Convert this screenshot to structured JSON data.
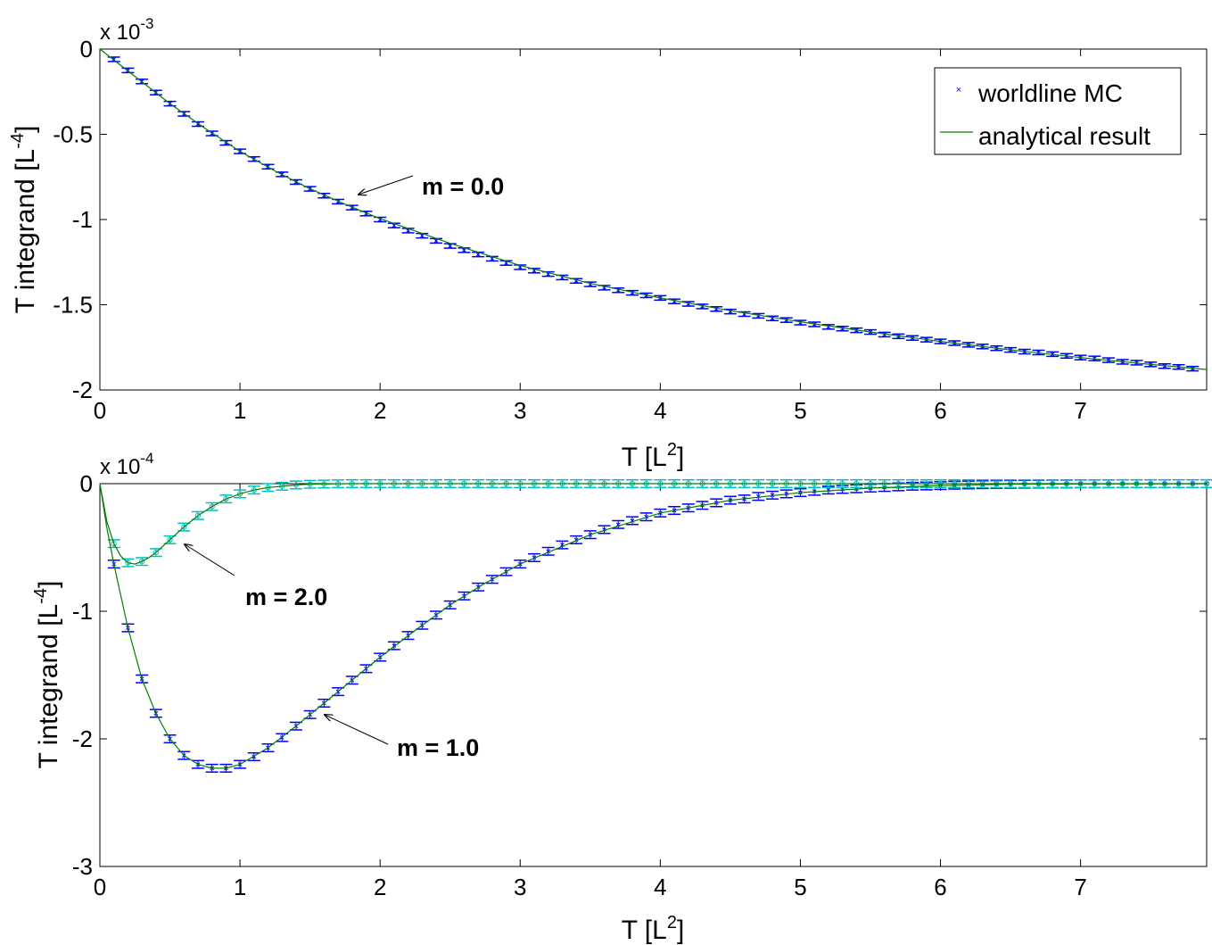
{
  "colors": {
    "mc_blue": "#0000ff",
    "mc_cyan": "#00bfbf",
    "analytic_green": "#008000",
    "axes": "#000000",
    "background": "#ffffff"
  },
  "chart_data": [
    {
      "type": "line",
      "xlabel": "T [L",
      "xlabel_sup": "2",
      "xlabel_close": "]",
      "ylabel": "T integrand [L",
      "ylabel_sup": "-4",
      "ylabel_close": "]",
      "exponent_base": "x 10",
      "exponent_power": "-3",
      "xlim": [
        0,
        7.9
      ],
      "ylim": [
        -2,
        0
      ],
      "xticks": [
        0,
        1,
        2,
        3,
        4,
        5,
        6,
        7
      ],
      "xtick_labels": [
        "0",
        "1",
        "2",
        "3",
        "4",
        "5",
        "6",
        "7"
      ],
      "yticks": [
        0,
        -0.5,
        -1,
        -1.5,
        -2
      ],
      "ytick_labels": [
        "0",
        "-0.5",
        "-1",
        "-1.5",
        "-2"
      ],
      "grid": false,
      "legend": {
        "position": "top-right",
        "entries": [
          {
            "label": "worldline MC",
            "marker": "x",
            "color": "#0000ff"
          },
          {
            "label": "analytical result",
            "line": true,
            "color": "#008000"
          }
        ]
      },
      "annotations": [
        {
          "text": "m = 0.0",
          "points_to": [
            1.8,
            -0.92
          ]
        }
      ],
      "series": [
        {
          "label": "m = 0.0",
          "kind": "mc",
          "color": "#0000ff",
          "x": [
            0.1,
            0.2,
            0.3,
            0.4,
            0.5,
            0.6,
            0.7,
            0.8,
            0.9,
            1.0,
            1.1,
            1.2,
            1.3,
            1.4,
            1.5,
            1.6,
            1.7,
            1.8,
            1.9,
            2.0,
            2.1,
            2.2,
            2.3,
            2.4,
            2.5,
            2.6,
            2.7,
            2.8,
            2.9,
            3.0,
            3.1,
            3.2,
            3.3,
            3.4,
            3.5,
            3.6,
            3.7,
            3.8,
            3.9,
            4.0,
            4.1,
            4.2,
            4.3,
            4.4,
            4.5,
            4.6,
            4.7,
            4.8,
            4.9,
            5.0,
            5.1,
            5.2,
            5.3,
            5.4,
            5.5,
            5.6,
            5.7,
            5.8,
            5.9,
            6.0,
            6.1,
            6.2,
            6.3,
            6.4,
            6.5,
            6.6,
            6.7,
            6.8,
            6.9,
            7.0,
            7.1,
            7.2,
            7.3,
            7.4,
            7.5,
            7.6,
            7.7,
            7.8
          ],
          "y": [
            -0.06,
            -0.125,
            -0.19,
            -0.255,
            -0.32,
            -0.38,
            -0.44,
            -0.495,
            -0.55,
            -0.6,
            -0.645,
            -0.69,
            -0.735,
            -0.78,
            -0.82,
            -0.86,
            -0.895,
            -0.93,
            -0.965,
            -1.0,
            -1.035,
            -1.065,
            -1.095,
            -1.125,
            -1.155,
            -1.18,
            -1.205,
            -1.23,
            -1.255,
            -1.28,
            -1.3,
            -1.32,
            -1.34,
            -1.36,
            -1.38,
            -1.4,
            -1.415,
            -1.43,
            -1.445,
            -1.46,
            -1.48,
            -1.495,
            -1.51,
            -1.525,
            -1.54,
            -1.555,
            -1.565,
            -1.58,
            -1.59,
            -1.605,
            -1.615,
            -1.63,
            -1.64,
            -1.65,
            -1.66,
            -1.675,
            -1.685,
            -1.695,
            -1.705,
            -1.715,
            -1.725,
            -1.735,
            -1.745,
            -1.755,
            -1.765,
            -1.775,
            -1.78,
            -1.79,
            -1.8,
            -1.81,
            -1.815,
            -1.825,
            -1.835,
            -1.84,
            -1.85,
            -1.86,
            -1.865,
            -1.875
          ],
          "err": 0.01
        },
        {
          "label": "m = 0.0",
          "kind": "analytic",
          "color": "#008000",
          "x": [
            0,
            0.25,
            0.5,
            0.75,
            1.0,
            1.25,
            1.5,
            1.75,
            2.0,
            2.5,
            3.0,
            3.5,
            4.0,
            4.5,
            5.0,
            5.5,
            6.0,
            6.5,
            7.0,
            7.5,
            7.9
          ],
          "y": [
            0,
            -0.16,
            -0.32,
            -0.465,
            -0.6,
            -0.715,
            -0.82,
            -0.91,
            -0.995,
            -1.14,
            -1.27,
            -1.375,
            -1.46,
            -1.535,
            -1.6,
            -1.66,
            -1.715,
            -1.765,
            -1.81,
            -1.85,
            -1.88
          ]
        }
      ]
    },
    {
      "type": "line",
      "xlabel": "T [L",
      "xlabel_sup": "2",
      "xlabel_close": "]",
      "ylabel": "T integrand [L",
      "ylabel_sup": "-4",
      "ylabel_close": "]",
      "exponent_base": "x 10",
      "exponent_power": "-4",
      "xlim": [
        0,
        7.9
      ],
      "ylim": [
        -3,
        0
      ],
      "xticks": [
        0,
        1,
        2,
        3,
        4,
        5,
        6,
        7
      ],
      "xtick_labels": [
        "0",
        "1",
        "2",
        "3",
        "4",
        "5",
        "6",
        "7"
      ],
      "yticks": [
        0,
        -1,
        -2,
        -3
      ],
      "ytick_labels": [
        "0",
        "-1",
        "-2",
        "-3"
      ],
      "grid": false,
      "annotations": [
        {
          "text": "m = 2.0",
          "points_to": [
            0.6,
            -0.47
          ]
        },
        {
          "text": "m = 1.0",
          "points_to": [
            1.6,
            -1.81
          ]
        }
      ],
      "series": [
        {
          "label": "m = 1.0",
          "kind": "mc",
          "color": "#0000ff",
          "x": [
            0.1,
            0.2,
            0.3,
            0.4,
            0.5,
            0.6,
            0.7,
            0.8,
            0.9,
            1.0,
            1.1,
            1.2,
            1.3,
            1.4,
            1.5,
            1.6,
            1.7,
            1.8,
            1.9,
            2.0,
            2.1,
            2.2,
            2.3,
            2.4,
            2.5,
            2.6,
            2.7,
            2.8,
            2.9,
            3.0,
            3.1,
            3.2,
            3.3,
            3.4,
            3.5,
            3.6,
            3.7,
            3.8,
            3.9,
            4.0,
            4.1,
            4.2,
            4.3,
            4.4,
            4.5,
            4.6,
            4.7,
            4.8,
            4.9,
            5.0,
            5.1,
            5.2,
            5.3,
            5.4,
            5.5,
            5.6,
            5.7,
            5.8,
            5.9,
            6.0,
            6.1,
            6.2,
            6.3,
            6.4,
            6.5,
            6.6,
            6.7,
            6.8,
            6.9,
            7.0,
            7.1,
            7.2,
            7.3,
            7.4,
            7.5,
            7.6,
            7.7,
            7.8,
            7.9
          ],
          "y": [
            -0.63,
            -1.13,
            -1.53,
            -1.8,
            -2.0,
            -2.13,
            -2.2,
            -2.23,
            -2.23,
            -2.2,
            -2.14,
            -2.07,
            -1.99,
            -1.9,
            -1.81,
            -1.72,
            -1.63,
            -1.54,
            -1.45,
            -1.36,
            -1.27,
            -1.19,
            -1.11,
            -1.03,
            -0.95,
            -0.88,
            -0.81,
            -0.75,
            -0.69,
            -0.63,
            -0.58,
            -0.53,
            -0.48,
            -0.44,
            -0.4,
            -0.36,
            -0.32,
            -0.29,
            -0.26,
            -0.23,
            -0.21,
            -0.19,
            -0.17,
            -0.15,
            -0.13,
            -0.12,
            -0.1,
            -0.09,
            -0.08,
            -0.07,
            -0.06,
            -0.05,
            -0.045,
            -0.04,
            -0.035,
            -0.03,
            -0.025,
            -0.02,
            -0.018,
            -0.015,
            -0.012,
            -0.01,
            -0.008,
            -0.006,
            -0.005,
            -0.004,
            -0.003,
            -0.002,
            -0.002,
            -0.001,
            -0.001,
            -0.001,
            0,
            0,
            0,
            0,
            0,
            0,
            0
          ],
          "err": 0.03
        },
        {
          "label": "m = 2.0",
          "kind": "mc",
          "color": "#00bfbf",
          "x": [
            0.1,
            0.2,
            0.3,
            0.4,
            0.5,
            0.6,
            0.7,
            0.8,
            0.9,
            1.0,
            1.1,
            1.2,
            1.3,
            1.4,
            1.5,
            1.6,
            1.7,
            1.8,
            1.9,
            2.0,
            2.1,
            2.2,
            2.3,
            2.4,
            2.5,
            2.6,
            2.7,
            2.8,
            2.9,
            3.0,
            3.1,
            3.2,
            3.3,
            3.4,
            3.5,
            3.6,
            3.7,
            3.8,
            3.9,
            4.0,
            4.1,
            4.2,
            4.3,
            4.4,
            4.5,
            4.6,
            4.7,
            4.8,
            4.9,
            5.0,
            5.1,
            5.2,
            5.3,
            5.4,
            5.5,
            5.6,
            5.7,
            5.8,
            5.9,
            6.0,
            6.1,
            6.2,
            6.3,
            6.4,
            6.5,
            6.6,
            6.7,
            6.8,
            6.9,
            7.0,
            7.1,
            7.2,
            7.3,
            7.4,
            7.5,
            7.6,
            7.7,
            7.8,
            7.9
          ],
          "y": [
            -0.47,
            -0.62,
            -0.61,
            -0.54,
            -0.44,
            -0.34,
            -0.25,
            -0.18,
            -0.12,
            -0.08,
            -0.05,
            -0.03,
            -0.02,
            -0.01,
            -0.005,
            -0.003,
            -0.001,
            0,
            0,
            0,
            0,
            0,
            0,
            0,
            0,
            0,
            0,
            0,
            0,
            0,
            0,
            0,
            0,
            0,
            0,
            0,
            0,
            0,
            0,
            0,
            0,
            0,
            0,
            0,
            0,
            0,
            0,
            0,
            0,
            0,
            0,
            0,
            0,
            0,
            0,
            0,
            0,
            0,
            0,
            0,
            0,
            0,
            0,
            0,
            0,
            0,
            0,
            0,
            0,
            0,
            0,
            0,
            0,
            0,
            0,
            0,
            0,
            0,
            0
          ],
          "err": 0.03
        },
        {
          "label": "m = 1.0",
          "kind": "analytic",
          "color": "#008000",
          "x": [
            0,
            0.05,
            0.1,
            0.2,
            0.3,
            0.4,
            0.5,
            0.6,
            0.7,
            0.8,
            0.9,
            1.0,
            1.2,
            1.4,
            1.6,
            1.8,
            2.0,
            2.25,
            2.5,
            2.75,
            3.0,
            3.5,
            4.0,
            4.5,
            5.0,
            5.5,
            6.0,
            6.5,
            7.0,
            7.5,
            7.9
          ],
          "y": [
            0,
            -0.35,
            -0.63,
            -1.13,
            -1.53,
            -1.8,
            -2.0,
            -2.13,
            -2.2,
            -2.23,
            -2.23,
            -2.2,
            -2.07,
            -1.9,
            -1.72,
            -1.54,
            -1.36,
            -1.15,
            -0.95,
            -0.78,
            -0.63,
            -0.4,
            -0.23,
            -0.13,
            -0.07,
            -0.035,
            -0.015,
            -0.005,
            -0.002,
            -0.001,
            0
          ]
        },
        {
          "label": "m = 2.0",
          "kind": "analytic",
          "color": "#008000",
          "x": [
            0,
            0.05,
            0.1,
            0.15,
            0.2,
            0.25,
            0.3,
            0.35,
            0.4,
            0.5,
            0.6,
            0.7,
            0.8,
            0.9,
            1.0,
            1.1,
            1.2,
            1.3,
            1.4,
            1.5,
            1.6,
            1.7,
            1.8,
            2.0,
            7.9
          ],
          "y": [
            0,
            -0.3,
            -0.47,
            -0.57,
            -0.62,
            -0.63,
            -0.61,
            -0.58,
            -0.54,
            -0.44,
            -0.34,
            -0.25,
            -0.18,
            -0.12,
            -0.08,
            -0.05,
            -0.03,
            -0.02,
            -0.01,
            -0.005,
            -0.003,
            -0.001,
            0,
            0,
            0
          ]
        }
      ]
    }
  ]
}
